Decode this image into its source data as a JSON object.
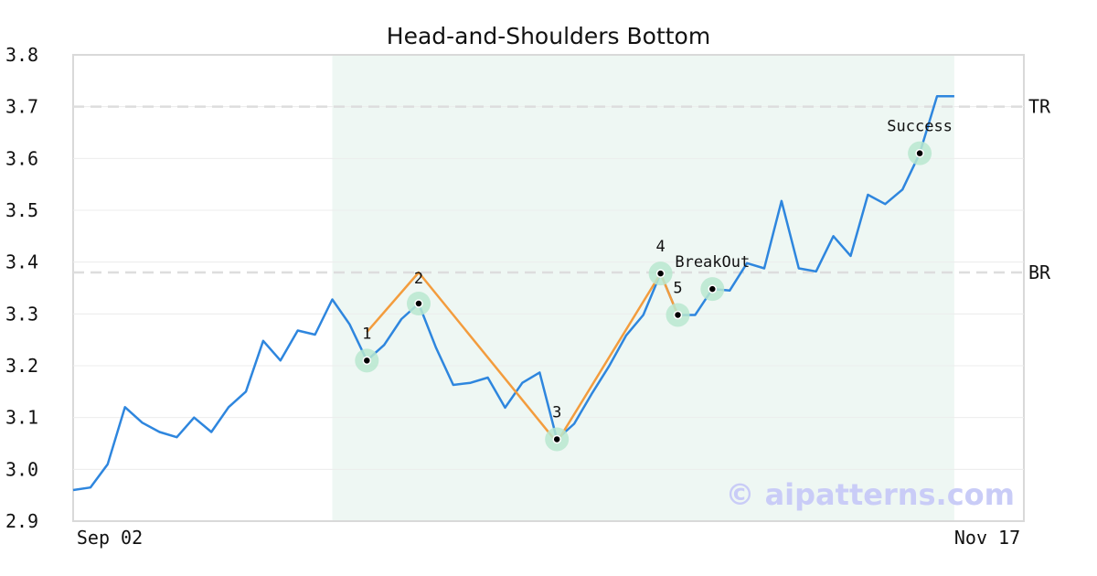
{
  "chart_data": {
    "type": "line",
    "title": "Head-and-Shoulders Bottom",
    "ylim": [
      2.9,
      3.8
    ],
    "yticks": [
      "3.8",
      "3.7",
      "3.6",
      "3.5",
      "3.4",
      "3.3",
      "3.2",
      "3.1",
      "3.0",
      "2.9"
    ],
    "xticks": [
      "Sep 02",
      "Nov 17"
    ],
    "grid": true,
    "series": [
      {
        "color": "#2e86de",
        "values": [
          2.96,
          2.965,
          3.01,
          3.12,
          3.09,
          3.072,
          3.062,
          3.1,
          3.072,
          3.12,
          3.15,
          3.248,
          3.21,
          3.268,
          3.26,
          3.328,
          3.28,
          3.21,
          3.24,
          3.29,
          3.32,
          3.235,
          3.163,
          3.167,
          3.177,
          3.119,
          3.167,
          3.187,
          3.058,
          3.088,
          3.145,
          3.198,
          3.258,
          3.298,
          3.378,
          3.298,
          3.298,
          3.348,
          3.345,
          3.398,
          3.388,
          3.518,
          3.388,
          3.382,
          3.45,
          3.412,
          3.53,
          3.512,
          3.54,
          3.61,
          3.72,
          3.72
        ]
      }
    ],
    "pattern_line": {
      "color": "#f39c3d",
      "points": [
        [
          17,
          3.265
        ],
        [
          20,
          3.38
        ],
        [
          28,
          3.052
        ],
        [
          34,
          3.378
        ],
        [
          35,
          3.298
        ]
      ]
    },
    "highlight_region": {
      "from_index": 15,
      "to_index": 51,
      "color": "#eef7f3"
    },
    "levels": [
      {
        "label": "TR",
        "value": 3.7
      },
      {
        "label": "BR",
        "value": 3.38
      }
    ],
    "markers": [
      {
        "label": "1",
        "index": 17,
        "value": 3.21
      },
      {
        "label": "2",
        "index": 20,
        "value": 3.32
      },
      {
        "label": "3",
        "index": 28,
        "value": 3.058
      },
      {
        "label": "4",
        "index": 34,
        "value": 3.378
      },
      {
        "label": "5",
        "index": 35,
        "value": 3.298
      },
      {
        "label": "BreakOut",
        "index": 37,
        "value": 3.348
      },
      {
        "label": "Success",
        "index": 49,
        "value": 3.61
      }
    ],
    "watermark": "© aipatterns.com"
  }
}
